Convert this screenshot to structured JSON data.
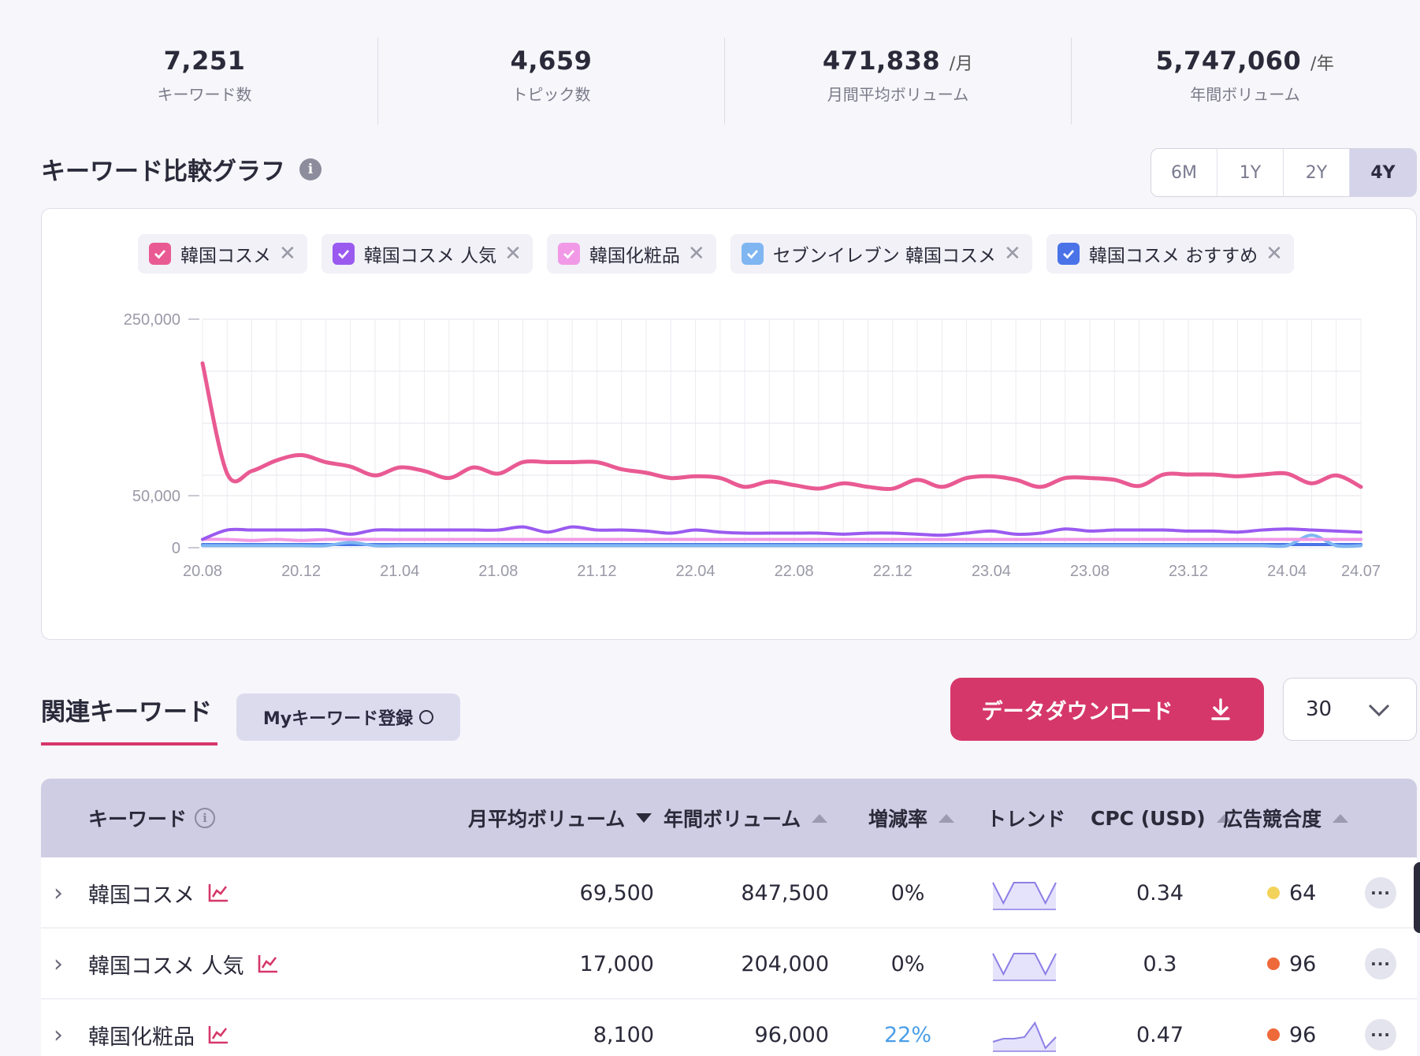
{
  "stats": [
    {
      "value": "7,251",
      "unit": "",
      "label": "キーワード数"
    },
    {
      "value": "4,659",
      "unit": "",
      "label": "トピック数"
    },
    {
      "value": "471,838",
      "unit": "/月",
      "label": "月間平均ボリューム"
    },
    {
      "value": "5,747,060",
      "unit": "/年",
      "label": "年間ボリューム"
    }
  ],
  "chart_section": {
    "title": "キーワード比較グラフ",
    "info_icon": "info-icon",
    "range_tabs": [
      "6M",
      "1Y",
      "2Y",
      "4Y"
    ],
    "active_range": "4Y"
  },
  "chart_data": {
    "type": "line",
    "x": [
      "20.08",
      "20.09",
      "20.10",
      "20.11",
      "20.12",
      "21.01",
      "21.02",
      "21.03",
      "21.04",
      "21.05",
      "21.06",
      "21.07",
      "21.08",
      "21.09",
      "21.10",
      "21.11",
      "21.12",
      "22.01",
      "22.02",
      "22.03",
      "22.04",
      "22.05",
      "22.06",
      "22.07",
      "22.08",
      "22.09",
      "22.10",
      "22.11",
      "22.12",
      "23.01",
      "23.02",
      "23.03",
      "23.04",
      "23.05",
      "23.06",
      "23.07",
      "23.08",
      "23.09",
      "23.10",
      "23.11",
      "23.12",
      "24.01",
      "24.02",
      "24.03",
      "24.04",
      "24.05",
      "24.06",
      "24.07"
    ],
    "x_tick_labels": [
      "20.08",
      "20.12",
      "21.04",
      "21.08",
      "21.12",
      "22.04",
      "22.08",
      "22.12",
      "23.04",
      "23.08",
      "23.12",
      "24.04",
      "24.07"
    ],
    "y_tick_labels": [
      "250,000",
      "50,000",
      "0"
    ],
    "ylim": [
      0,
      250000
    ],
    "grid": true,
    "series": [
      {
        "name": "韓国コスメ",
        "color": "#e95a93",
        "values": [
          200000,
          75000,
          78000,
          90000,
          96000,
          88000,
          83000,
          73000,
          82000,
          78000,
          70000,
          82000,
          75000,
          88000,
          88000,
          88000,
          88000,
          80000,
          76000,
          70000,
          72000,
          70000,
          60000,
          66000,
          62000,
          58000,
          64000,
          60000,
          58000,
          68000,
          60000,
          70000,
          72000,
          68000,
          60000,
          70000,
          70000,
          68000,
          61000,
          74000,
          74000,
          74000,
          72000,
          74000,
          75000,
          64000,
          73000,
          60000
        ]
      },
      {
        "name": "韓国コスメ 人気",
        "color": "#9a5af0",
        "values": [
          8000,
          17000,
          17000,
          17000,
          17000,
          17000,
          13000,
          17000,
          17000,
          17000,
          17000,
          17000,
          17000,
          20000,
          15000,
          20000,
          17000,
          17000,
          16000,
          14000,
          17000,
          15000,
          14000,
          14000,
          14000,
          14000,
          13000,
          14000,
          14000,
          13000,
          12000,
          14000,
          16000,
          13000,
          14000,
          18000,
          16000,
          17000,
          17000,
          17000,
          16000,
          16000,
          15000,
          17000,
          18000,
          17000,
          16000,
          15000
        ]
      },
      {
        "name": "韓国化粧品",
        "color": "#f199e6",
        "values": [
          8000,
          8000,
          7000,
          8000,
          7000,
          8000,
          8000,
          8000,
          8000,
          8000,
          8000,
          8000,
          8000,
          8000,
          8000,
          8000,
          8000,
          8000,
          8000,
          8000,
          8000,
          8000,
          8000,
          8000,
          8000,
          8000,
          8000,
          8000,
          8000,
          8000,
          8000,
          8000,
          8000,
          8000,
          8000,
          8000,
          8000,
          8000,
          8000,
          8000,
          8000,
          8000,
          8000,
          8000,
          8000,
          8000,
          8000,
          8000
        ]
      },
      {
        "name": "セブンイレブン 韓国コスメ",
        "color": "#7fb6f2",
        "values": [
          2000,
          2000,
          2000,
          2000,
          2000,
          2000,
          5000,
          2000,
          2000,
          2000,
          2000,
          2000,
          2000,
          2000,
          2000,
          2000,
          2000,
          2000,
          2000,
          2000,
          2000,
          2000,
          2000,
          2000,
          2000,
          2000,
          2000,
          2000,
          2000,
          2000,
          2000,
          2000,
          2000,
          2000,
          2000,
          2000,
          2000,
          2000,
          2000,
          2000,
          2000,
          2000,
          2000,
          2000,
          2000,
          12000,
          2000,
          2000
        ]
      },
      {
        "name": "韓国コスメ おすすめ",
        "color": "#4a73e8",
        "values": [
          3000,
          3000,
          3000,
          3000,
          3000,
          3000,
          3000,
          3000,
          3000,
          3000,
          3000,
          3000,
          3000,
          3000,
          3000,
          3000,
          3000,
          3000,
          3000,
          3000,
          3000,
          3000,
          3000,
          3000,
          3000,
          3000,
          3000,
          3000,
          3000,
          3000,
          3000,
          3000,
          3000,
          3000,
          3000,
          3000,
          3000,
          3000,
          3000,
          3000,
          3000,
          3000,
          3000,
          3000,
          3000,
          3000,
          3000,
          3000
        ]
      }
    ]
  },
  "keywords": {
    "tab_label": "関連キーワード",
    "my_button": "Myキーワード登録",
    "download_button": "データダウンロード",
    "per_page": "30",
    "columns": {
      "keyword": "キーワード",
      "monthly": "月平均ボリューム",
      "yearly": "年間ボリューム",
      "change": "増減率",
      "trend": "トレンド",
      "cpc": "CPC (USD)",
      "competition": "広告競合度"
    },
    "rows": [
      {
        "keyword": "韓国コスメ",
        "monthly": "69,500",
        "yearly": "847,500",
        "change": "0%",
        "change_color": "#2a2a3a",
        "trend": [
          0.85,
          0.2,
          0.85,
          0.85,
          0.85,
          0.2,
          0.85
        ],
        "cpc": "0.34",
        "competition": "64",
        "comp_color": "#f3d25a"
      },
      {
        "keyword": "韓国コスメ 人気",
        "monthly": "17,000",
        "yearly": "204,000",
        "change": "0%",
        "change_color": "#2a2a3a",
        "trend": [
          0.85,
          0.2,
          0.85,
          0.85,
          0.85,
          0.2,
          0.85
        ],
        "cpc": "0.3",
        "competition": "96",
        "comp_color": "#ee6a3a"
      },
      {
        "keyword": "韓国化粧品",
        "monthly": "8,100",
        "yearly": "96,000",
        "change": "22%",
        "change_color": "#4a9ee8",
        "trend": [
          0.3,
          0.4,
          0.4,
          0.45,
          0.9,
          0.1,
          0.45
        ],
        "cpc": "0.47",
        "competition": "96",
        "comp_color": "#ee6a3a"
      }
    ]
  }
}
